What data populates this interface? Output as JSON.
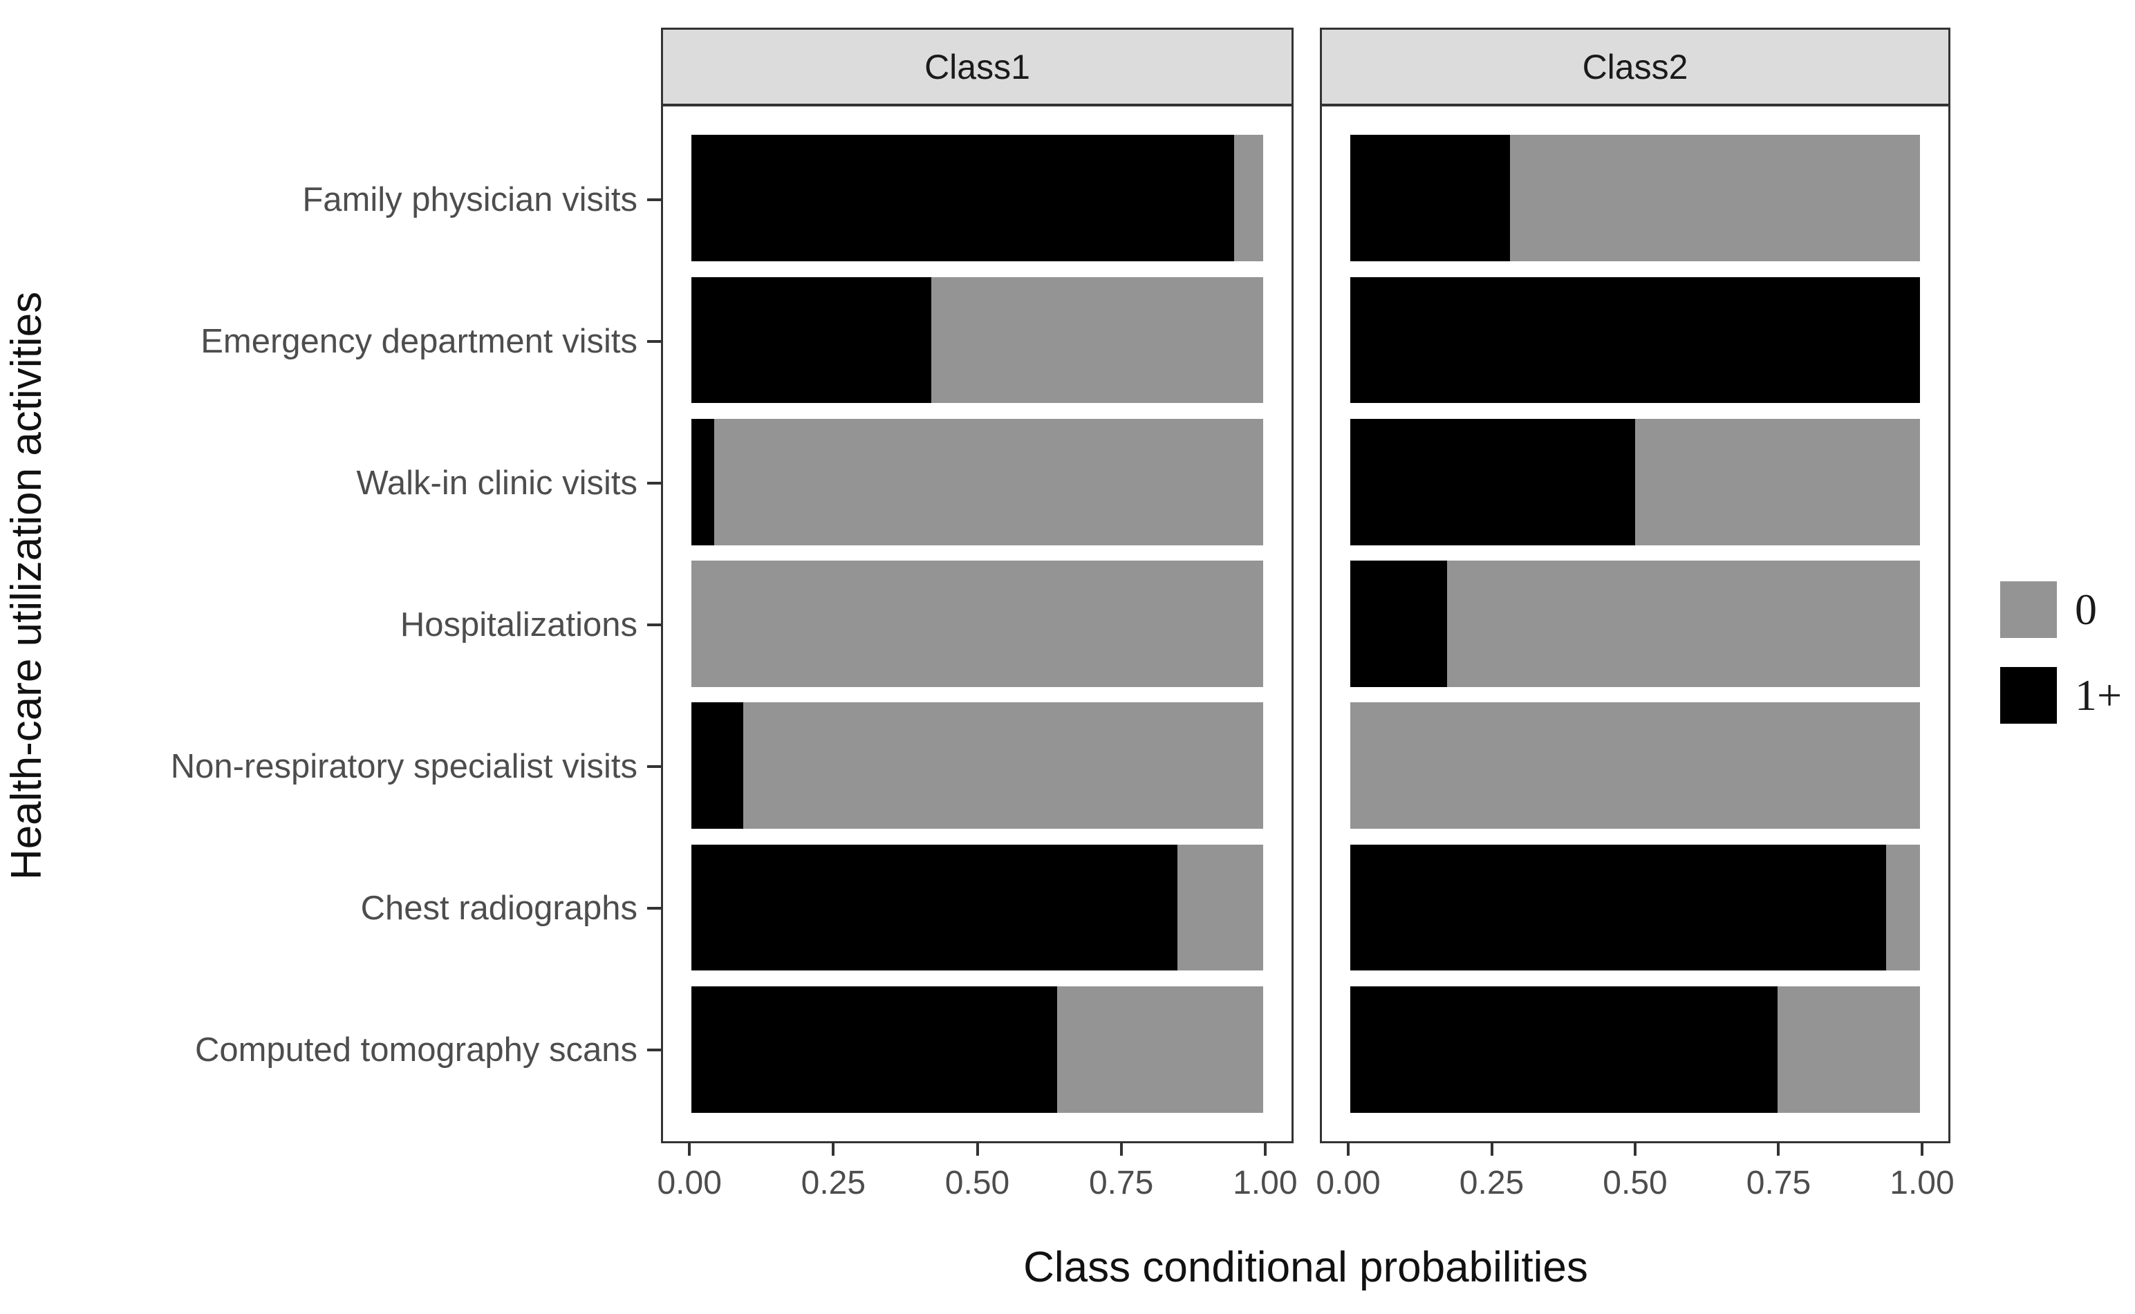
{
  "figure": {
    "y_axis_title": "Health-care utilization activities",
    "x_axis_title": "Class conditional probabilities"
  },
  "chart_data": {
    "type": "bar",
    "orientation": "horizontal",
    "stacked": true,
    "grid": false,
    "legend_position": "right",
    "xlabel": "Class conditional probabilities",
    "ylabel": "Health-care utilization activities",
    "xlim": [
      0,
      1
    ],
    "x_ticks": [
      0,
      0.25,
      0.5,
      0.75,
      1
    ],
    "x_tick_labels": [
      "0.00",
      "0.25",
      "0.50",
      "0.75",
      "1.00"
    ],
    "categories": [
      "Family physician visits",
      "Emergency department visits",
      "Walk-in clinic visits",
      "Hospitalizations",
      "Non-respiratory specialist visits",
      "Chest radiographs",
      "Computed tomography scans"
    ],
    "facets": [
      {
        "label": "Class1",
        "series": [
          {
            "name": "1+",
            "color": "#000000",
            "values": [
              0.95,
              0.42,
              0.04,
              0.0,
              0.09,
              0.85,
              0.64
            ]
          },
          {
            "name": "0",
            "color": "#949494",
            "values": [
              0.05,
              0.58,
              0.96,
              1.0,
              0.91,
              0.15,
              0.36
            ]
          }
        ]
      },
      {
        "label": "Class2",
        "series": [
          {
            "name": "1+",
            "color": "#000000",
            "values": [
              0.28,
              1.0,
              0.5,
              0.17,
              0.0,
              0.94,
              0.75
            ]
          },
          {
            "name": "0",
            "color": "#949494",
            "values": [
              0.72,
              0.0,
              0.5,
              0.83,
              1.0,
              0.06,
              0.25
            ]
          }
        ]
      }
    ]
  },
  "legend": {
    "items": [
      {
        "label": "0",
        "color": "#949494"
      },
      {
        "label": "1+",
        "color": "#000000"
      }
    ]
  },
  "colors": {
    "bar_zero": "#949494",
    "bar_one_plus": "#000000",
    "strip_bg": "#dcdcdc",
    "panel_border": "#333333",
    "tick_label_text": "#4d4d4d",
    "axis_title_text": "#111111",
    "background": "#ffffff"
  }
}
